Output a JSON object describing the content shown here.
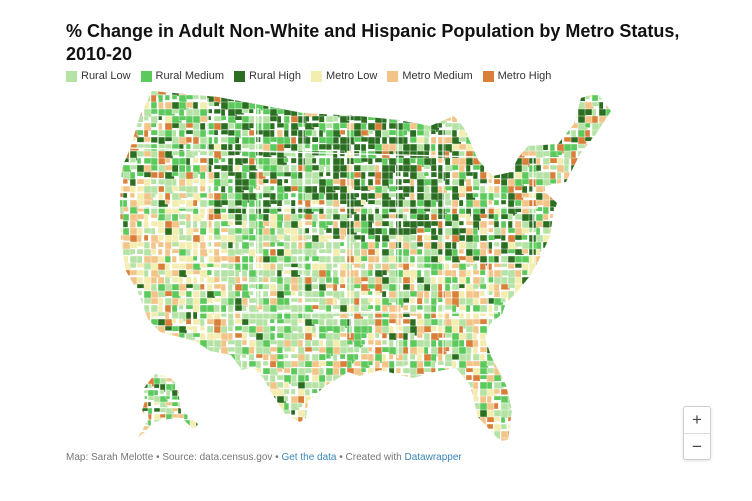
{
  "title": "% Change in Adult Non-White and Hispanic Population by Metro Status, 2010-20",
  "legend": [
    {
      "label": "Rural Low",
      "color": "#b5e3a6"
    },
    {
      "label": "Rural Medium",
      "color": "#5cc95c"
    },
    {
      "label": "Rural High",
      "color": "#2b6e22"
    },
    {
      "label": "Metro Low",
      "color": "#f4edb0"
    },
    {
      "label": "Metro Medium",
      "color": "#f3c488"
    },
    {
      "label": "Metro High",
      "color": "#d97f3a"
    }
  ],
  "map": {
    "region": "United States counties",
    "nodata_color": "#d9d9d9",
    "border_color": "#ffffff"
  },
  "zoom": {
    "in_label": "+",
    "out_label": "−"
  },
  "footer": {
    "prefix": "Map: Sarah Melotte • Source: data.census.gov • ",
    "get_data": "Get the data",
    "sep": " • Created with ",
    "datawrapper": "Datawrapper"
  }
}
